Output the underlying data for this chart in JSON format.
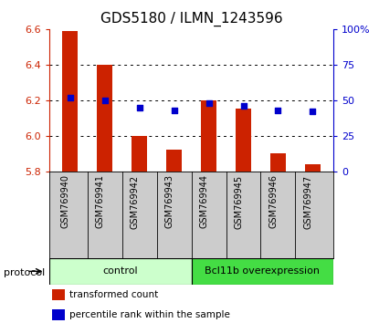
{
  "title": "GDS5180 / ILMN_1243596",
  "samples": [
    "GSM769940",
    "GSM769941",
    "GSM769942",
    "GSM769943",
    "GSM769944",
    "GSM769945",
    "GSM769946",
    "GSM769947"
  ],
  "transformed_count": [
    6.59,
    6.4,
    6.0,
    5.92,
    6.2,
    6.15,
    5.9,
    5.84
  ],
  "percentile_rank": [
    52,
    50,
    45,
    43,
    48,
    46,
    43,
    42
  ],
  "bar_baseline": 5.8,
  "ylim_left": [
    5.8,
    6.6
  ],
  "ylim_right": [
    0,
    100
  ],
  "yticks_left": [
    5.8,
    6.0,
    6.2,
    6.4,
    6.6
  ],
  "yticks_right": [
    0,
    25,
    50,
    75,
    100
  ],
  "ytick_labels_right": [
    "0",
    "25",
    "50",
    "75",
    "100%"
  ],
  "bar_color": "#cc2200",
  "square_color": "#0000cc",
  "control_label": "control",
  "overexp_label": "Bcl11b overexpression",
  "n_control": 4,
  "n_overexp": 4,
  "control_bg": "#ccffcc",
  "overexp_bg": "#44dd44",
  "protocol_label": "protocol",
  "legend_bar_label": "transformed count",
  "legend_square_label": "percentile rank within the sample",
  "title_fontsize": 11,
  "axis_tick_fontsize": 8,
  "sample_label_fontsize": 7,
  "group_label_fontsize": 8,
  "bg_color": "#ffffff",
  "plot_bg": "#ffffff",
  "grid_color": "#000000",
  "sample_area_bg": "#cccccc",
  "bar_width": 0.45
}
